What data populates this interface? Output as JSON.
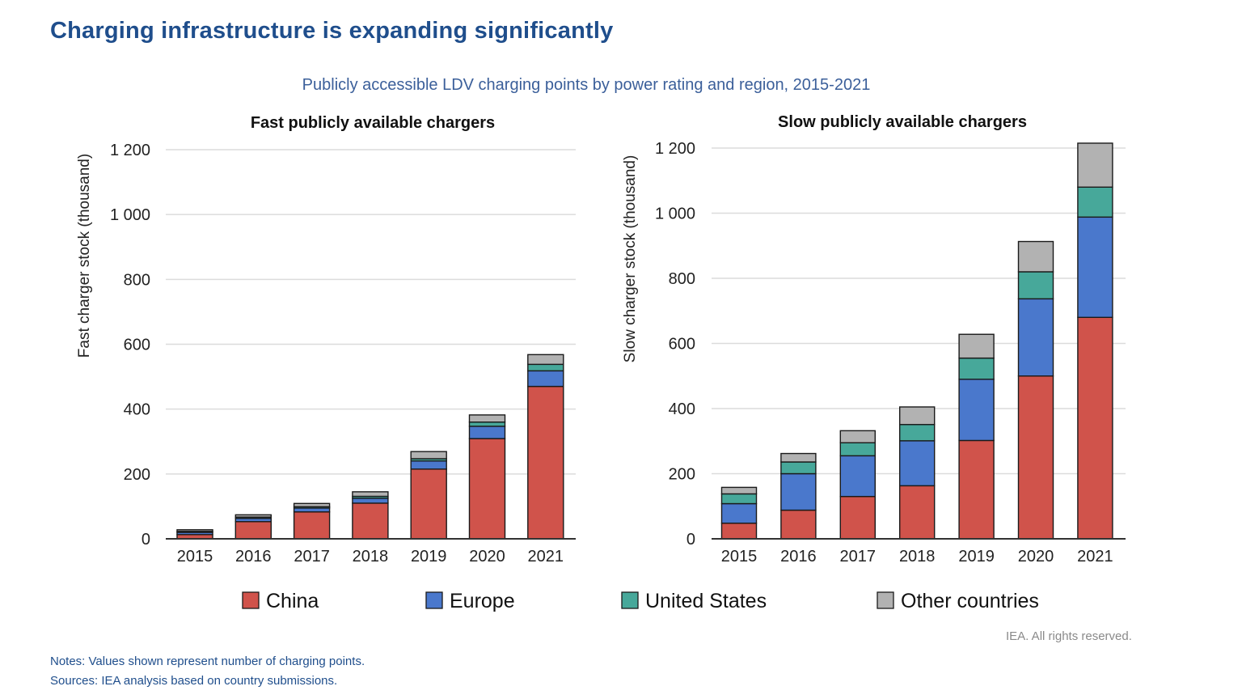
{
  "header": {
    "title": "Charging infrastructure is expanding significantly",
    "subtitle": "Publicly accessible LDV charging points by power rating and region, 2015-2021"
  },
  "chart_data": [
    {
      "type": "bar",
      "stacked": true,
      "title": "Fast  publicly available chargers",
      "xlabel": "",
      "ylabel": "Fast charger stock (thousand)",
      "ylim": [
        0,
        1200
      ],
      "yticks": [
        0,
        200,
        400,
        600,
        800,
        1000,
        1200
      ],
      "ytick_labels": [
        "0",
        "200",
        "400",
        "600",
        "800",
        "1 000",
        "1 200"
      ],
      "grid": true,
      "categories": [
        "2015",
        "2016",
        "2017",
        "2018",
        "2019",
        "2020",
        "2021"
      ],
      "series": [
        {
          "name": "China",
          "color": "#d0534b",
          "values": [
            13,
            53,
            83,
            110,
            215,
            309,
            470
          ]
        },
        {
          "name": "Europe",
          "color": "#4a78cc",
          "values": [
            7,
            10,
            12,
            15,
            25,
            38,
            48
          ]
        },
        {
          "name": "United States",
          "color": "#47a89a",
          "values": [
            3,
            4,
            4,
            6,
            7,
            13,
            20
          ]
        },
        {
          "name": "Other countries",
          "color": "#b2b2b2",
          "values": [
            5,
            7,
            10,
            14,
            22,
            22,
            30
          ]
        }
      ]
    },
    {
      "type": "bar",
      "stacked": true,
      "title": "Slow publicly available chargers",
      "xlabel": "",
      "ylabel": "Slow charger stock (thousand)",
      "ylim": [
        0,
        1200
      ],
      "yticks": [
        0,
        200,
        400,
        600,
        800,
        1000,
        1200
      ],
      "ytick_labels": [
        "0",
        "200",
        "400",
        "600",
        "800",
        "1 000",
        "1 200"
      ],
      "grid": true,
      "categories": [
        "2015",
        "2016",
        "2017",
        "2018",
        "2019",
        "2020",
        "2021"
      ],
      "series": [
        {
          "name": "China",
          "color": "#d0534b",
          "values": [
            48,
            88,
            130,
            163,
            302,
            500,
            680
          ]
        },
        {
          "name": "Europe",
          "color": "#4a78cc",
          "values": [
            60,
            112,
            125,
            138,
            188,
            237,
            308
          ]
        },
        {
          "name": "United States",
          "color": "#47a89a",
          "values": [
            30,
            36,
            40,
            50,
            65,
            83,
            92
          ]
        },
        {
          "name": "Other countries",
          "color": "#b2b2b2",
          "values": [
            20,
            26,
            37,
            54,
            73,
            93,
            135
          ]
        }
      ]
    }
  ],
  "legend": {
    "items": [
      {
        "label": "China",
        "color": "#d0534b"
      },
      {
        "label": "Europe",
        "color": "#4a78cc"
      },
      {
        "label": "United States",
        "color": "#47a89a"
      },
      {
        "label": "Other countries",
        "color": "#b2b2b2"
      }
    ]
  },
  "footer": {
    "rights": "IEA. All rights reserved.",
    "notes": "Notes: Values shown represent number of charging points.",
    "sources": "Sources: IEA analysis based on country submissions."
  }
}
